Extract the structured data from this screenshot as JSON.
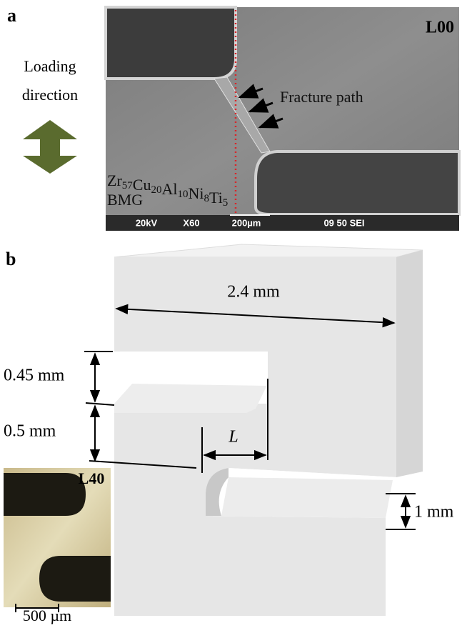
{
  "panel_a": {
    "label": "a",
    "sample": "L00",
    "loading": [
      "Loading",
      "direction"
    ],
    "annotation": "Fracture path",
    "formula": [
      [
        "Zr",
        "57"
      ],
      [
        "Cu",
        "20"
      ],
      [
        "Al",
        "10"
      ],
      [
        "Ni",
        "8"
      ],
      [
        "Ti",
        "5"
      ]
    ],
    "material": "BMG",
    "info_bar": [
      "20kV",
      "X60",
      "200µm",
      "09 50 SEI"
    ]
  },
  "panel_b": {
    "label": "b",
    "width": "2.4 mm",
    "slot_height": "0.45 mm",
    "arm_height": "0.5 mm",
    "ligament": "L",
    "thickness": "1 mm",
    "inset": {
      "sample": "L40",
      "scale": "500 µm"
    }
  }
}
